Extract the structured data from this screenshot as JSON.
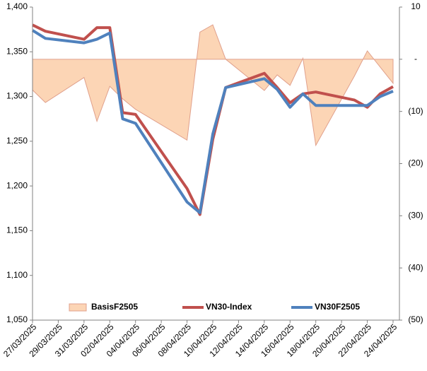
{
  "chart_data": {
    "type": "line",
    "x": [
      "27/03/2025",
      "28/03/2025",
      "31/03/2025",
      "01/04/2025",
      "02/04/2025",
      "03/04/2025",
      "04/04/2025",
      "08/04/2025",
      "09/04/2025",
      "10/04/2025",
      "11/04/2025",
      "14/04/2025",
      "15/04/2025",
      "16/04/2025",
      "17/04/2025",
      "18/04/2025",
      "21/04/2025",
      "22/04/2025",
      "23/04/2025",
      "24/04/2025"
    ],
    "xticks": [
      "27/03/2025",
      "29/03/2025",
      "31/03/2025",
      "02/04/2025",
      "04/04/2025",
      "06/04/2025",
      "08/04/2025",
      "10/04/2025",
      "12/04/2025",
      "14/04/2025",
      "16/04/2025",
      "18/04/2025",
      "20/04/2025",
      "22/04/2025",
      "24/04/2025"
    ],
    "ylim": [
      1050,
      1400
    ],
    "yticks": [
      {
        "value": 1050,
        "label": "1,050"
      },
      {
        "value": 1100,
        "label": "1,100"
      },
      {
        "value": 1150,
        "label": "1,150"
      },
      {
        "value": 1200,
        "label": "1,200"
      },
      {
        "value": 1250,
        "label": "1,250"
      },
      {
        "value": 1300,
        "label": "1,300"
      },
      {
        "value": 1350,
        "label": "1,350"
      },
      {
        "value": 1400,
        "label": "1,400"
      }
    ],
    "y2lim": [
      -50,
      10
    ],
    "y2ticks": [
      10,
      {
        "value": 0,
        "label": "-"
      },
      {
        "value": -10,
        "label": "(10)"
      },
      {
        "value": -20,
        "label": "(20)"
      },
      {
        "value": -30,
        "label": "(30)"
      },
      {
        "value": -40,
        "label": "(40)"
      },
      {
        "value": -50,
        "label": "(50)"
      }
    ],
    "series": [
      {
        "name": "BasisF2505",
        "type": "area",
        "axis": "y2",
        "color": "#fcd5b5",
        "edge": "#e0a08c",
        "values": [
          -5.9,
          -8.3,
          -3.5,
          -11.9,
          -5.2,
          -7.6,
          -9.6,
          -15.5,
          5.2,
          6.6,
          0,
          -6,
          -3,
          -5,
          0.2,
          -16.5,
          -3.2,
          1.6,
          -1.5,
          -4.6
        ]
      },
      {
        "name": "VN30-Index",
        "type": "line",
        "color": "#c0504d",
        "values": [
          1380,
          1373,
          1364,
          1377,
          1377,
          1282,
          1280,
          1197,
          1168,
          1252,
          1310,
          1326,
          1310,
          1293,
          1303,
          1305,
          1296,
          1288,
          1303,
          1311
        ]
      },
      {
        "name": "VN30F2505",
        "type": "line",
        "color": "#4f81bd",
        "values": [
          1374,
          1365,
          1360,
          1364,
          1371,
          1275,
          1270,
          1182,
          1170,
          1258,
          1310,
          1320,
          1308,
          1288,
          1303,
          1290,
          1290,
          1290,
          1300,
          1306
        ]
      }
    ]
  }
}
